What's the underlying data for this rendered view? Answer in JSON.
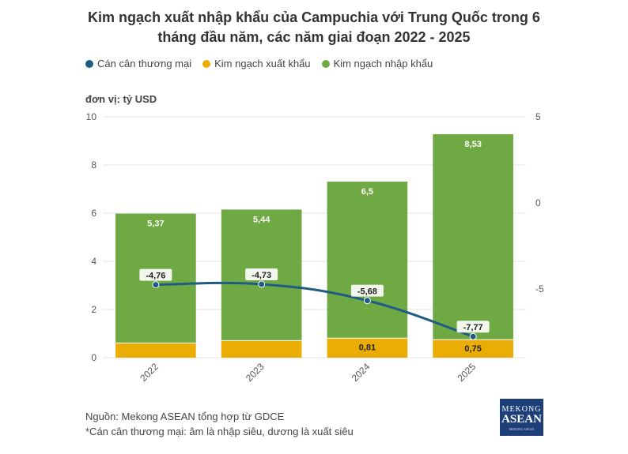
{
  "title_line1": "Kim ngạch xuất nhập khẩu của Campuchia với Trung Quốc trong 6",
  "title_line2": "tháng đầu năm, các năm giai đoạn 2022 - 2025",
  "legend": [
    {
      "label": "Cán cân thương mại",
      "color": "#1f5c84"
    },
    {
      "label": "Kim ngạch xuất khẩu",
      "color": "#eaad05"
    },
    {
      "label": "Kim ngạch nhập khẩu",
      "color": "#6fa943"
    }
  ],
  "unit_label": "đơn vị: tỷ USD",
  "footer_source": "Nguồn: Mekong ASEAN tổng hợp từ GDCE",
  "footer_note": "*Cán cân thương mại: âm là nhập siêu, dương là xuất siêu",
  "logo": {
    "line1": "MEKONG",
    "line2": "ASEAN",
    "line3": "MEKONG ASEAN"
  },
  "chart_data": {
    "type": "bar",
    "stacked": true,
    "categories": [
      "2022",
      "2023",
      "2024",
      "2025"
    ],
    "series": [
      {
        "name": "Kim ngạch xuất khẩu",
        "values": [
          0.61,
          0.71,
          0.81,
          0.75
        ],
        "labels": [
          "",
          "",
          "0,81",
          "0,75"
        ],
        "color": "#eaad05"
      },
      {
        "name": "Kim ngạch nhập khẩu",
        "values": [
          5.37,
          5.44,
          6.5,
          8.53
        ],
        "labels": [
          "5,37",
          "5,44",
          "6,5",
          "8,53"
        ],
        "color": "#6fa943"
      }
    ],
    "line": {
      "name": "Cán cân thương mại",
      "values": [
        -4.76,
        -4.73,
        -5.68,
        -7.77
      ],
      "labels": [
        "-4,76",
        "-4,73",
        "-5,68",
        "-7,77"
      ],
      "color": "#1f5c84",
      "axis": "right"
    },
    "ylim": [
      0,
      10
    ],
    "yticks": [
      "0",
      "2",
      "4",
      "6",
      "8",
      "10"
    ],
    "y2lim": [
      -9,
      5
    ],
    "y2ticks": [
      "5",
      "0",
      "-5"
    ],
    "xlabel": "",
    "ylabel": ""
  }
}
